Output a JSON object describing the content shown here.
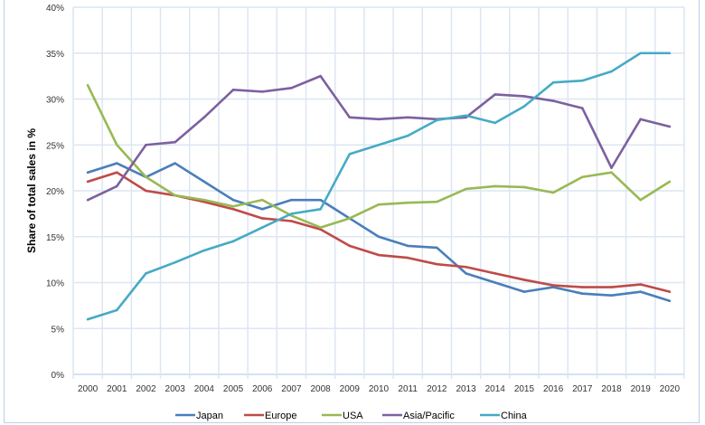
{
  "chart_data": {
    "type": "line",
    "title": "",
    "xlabel": "",
    "ylabel": "Share of total sales in %",
    "ylim": [
      0,
      40
    ],
    "yticks": [
      "0%",
      "5%",
      "10%",
      "15%",
      "20%",
      "25%",
      "30%",
      "35%",
      "40%"
    ],
    "grid": true,
    "legend_position": "bottom",
    "categories": [
      "2000",
      "2001",
      "2002",
      "2003",
      "2004",
      "2005",
      "2006",
      "2007",
      "2008",
      "2009",
      "2010",
      "2011",
      "2012",
      "2013",
      "2014",
      "2015",
      "2016",
      "2017",
      "2018",
      "2019",
      "2020"
    ],
    "series": [
      {
        "name": "Japan",
        "color": "#4a7ebb",
        "values": [
          22,
          23,
          21.5,
          23,
          21,
          19,
          18,
          19,
          19,
          17,
          15,
          14,
          13.8,
          11,
          10,
          9,
          9.5,
          8.8,
          8.6,
          9,
          8
        ]
      },
      {
        "name": "Europe",
        "color": "#be4b48",
        "values": [
          21,
          22,
          20,
          19.5,
          18.8,
          18,
          17,
          16.7,
          15.8,
          14,
          13,
          12.7,
          12,
          11.7,
          11,
          10.3,
          9.7,
          9.5,
          9.5,
          9.8,
          9
        ]
      },
      {
        "name": "USA",
        "color": "#98b954",
        "values": [
          31.5,
          25,
          21.5,
          19.5,
          19,
          18.3,
          19,
          17.3,
          16,
          17,
          18.5,
          18.7,
          18.8,
          20.2,
          20.5,
          20.4,
          19.8,
          21.5,
          22,
          19,
          21
        ]
      },
      {
        "name": "Asia/Pacific",
        "color": "#7d60a0",
        "values": [
          19,
          20.5,
          25,
          25.3,
          28,
          31,
          30.8,
          31.2,
          32.5,
          28,
          27.8,
          28,
          27.8,
          28,
          30.5,
          30.3,
          29.8,
          29,
          22.5,
          27.8,
          27
        ]
      },
      {
        "name": "China",
        "color": "#46aac5",
        "values": [
          6,
          7,
          11,
          12.2,
          13.5,
          14.5,
          16,
          17.5,
          18,
          24,
          25,
          26,
          27.7,
          28.2,
          27.4,
          29.2,
          31.8,
          32,
          33,
          35,
          35
        ]
      }
    ]
  }
}
